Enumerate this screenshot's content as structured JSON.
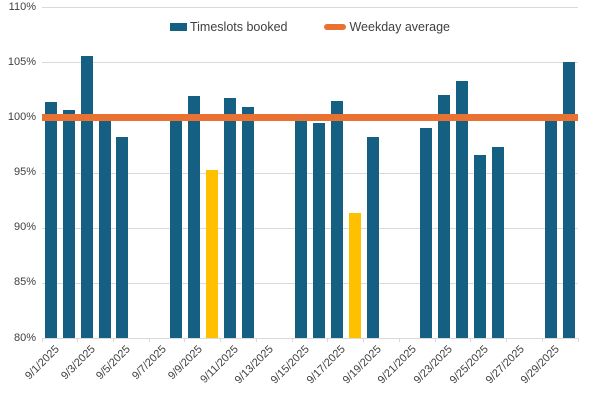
{
  "chart_data": {
    "type": "bar",
    "title": "",
    "legend_position": "top-center",
    "grid": "horizontal",
    "ylim": [
      80,
      110
    ],
    "y_tick_labels": [
      "80%",
      "85%",
      "90%",
      "95%",
      "100%",
      "105%",
      "110%"
    ],
    "x_tick_labels": [
      "9/1/2025",
      "9/3/2025",
      "9/5/2025",
      "9/7/2025",
      "9/9/2025",
      "9/11/2025",
      "9/13/2025",
      "9/15/2025",
      "9/17/2025",
      "9/19/2025",
      "9/21/2025",
      "9/23/2025",
      "9/25/2025",
      "9/27/2025",
      "9/29/2025"
    ],
    "days_in_month": 30,
    "series": [
      {
        "name": "Timeslots booked",
        "type": "bar",
        "points": [
          {
            "date": "9/1/2025",
            "day": 1,
            "value": 101.4,
            "highlight": false
          },
          {
            "date": "9/2/2025",
            "day": 2,
            "value": 100.7,
            "highlight": false
          },
          {
            "date": "9/3/2025",
            "day": 3,
            "value": 105.6,
            "highlight": false
          },
          {
            "date": "9/4/2025",
            "day": 4,
            "value": 99.8,
            "highlight": false
          },
          {
            "date": "9/5/2025",
            "day": 5,
            "value": 98.2,
            "highlight": false
          },
          {
            "date": "9/8/2025",
            "day": 8,
            "value": 99.9,
            "highlight": false
          },
          {
            "date": "9/9/2025",
            "day": 9,
            "value": 101.9,
            "highlight": false
          },
          {
            "date": "9/10/2025",
            "day": 10,
            "value": 95.2,
            "highlight": true
          },
          {
            "date": "9/11/2025",
            "day": 11,
            "value": 101.8,
            "highlight": false
          },
          {
            "date": "9/12/2025",
            "day": 12,
            "value": 100.9,
            "highlight": false
          },
          {
            "date": "9/15/2025",
            "day": 15,
            "value": 99.8,
            "highlight": false
          },
          {
            "date": "9/16/2025",
            "day": 16,
            "value": 99.5,
            "highlight": false
          },
          {
            "date": "9/17/2025",
            "day": 17,
            "value": 101.5,
            "highlight": false
          },
          {
            "date": "9/18/2025",
            "day": 18,
            "value": 91.3,
            "highlight": true
          },
          {
            "date": "9/19/2025",
            "day": 19,
            "value": 98.2,
            "highlight": false
          },
          {
            "date": "9/22/2025",
            "day": 22,
            "value": 99.0,
            "highlight": false
          },
          {
            "date": "9/23/2025",
            "day": 23,
            "value": 102.0,
            "highlight": false
          },
          {
            "date": "9/24/2025",
            "day": 24,
            "value": 103.3,
            "highlight": false
          },
          {
            "date": "9/25/2025",
            "day": 25,
            "value": 96.6,
            "highlight": false
          },
          {
            "date": "9/26/2025",
            "day": 26,
            "value": 97.3,
            "highlight": false
          },
          {
            "date": "9/29/2025",
            "day": 29,
            "value": 99.9,
            "highlight": false
          },
          {
            "date": "9/30/2025",
            "day": 30,
            "value": 105.0,
            "highlight": false
          }
        ]
      },
      {
        "name": "Weekday average",
        "type": "line",
        "value": 100.0
      }
    ],
    "colors": {
      "bar": "#156082",
      "highlight": "#FFC000",
      "average_line": "#E97132",
      "gridline": "#D9D9D9",
      "axis_line": "#D9D9D9",
      "label_text": "#404040"
    }
  }
}
